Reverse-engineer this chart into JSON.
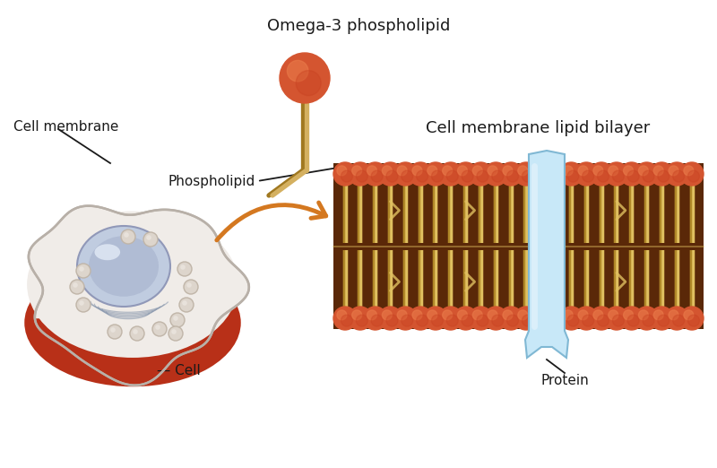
{
  "bg_color": "#ffffff",
  "title_omega": "Omega-3 phospholipid",
  "title_bilayer": "Cell membrane lipid bilayer",
  "label_phospholipid": "Phospholipid",
  "label_cell_membrane": "Cell membrane",
  "label_cell": "Cell",
  "label_protein": "Protein",
  "head_color_dark": "#c84020",
  "head_color_mid": "#d45530",
  "head_color_light": "#e87848",
  "tail_color_dark": "#a07820",
  "tail_color_light": "#d4b060",
  "bilayer_bg": "#5a2808",
  "bilayer_line_dark": "#b08828",
  "bilayer_line_light": "#e0c060",
  "cell_outer_color": "#b83018",
  "cell_inner_color": "#f0ece8",
  "cell_membrane_color": "#d8d0c8",
  "nucleus_color_dark": "#8898b8",
  "nucleus_color_light": "#c0cce0",
  "nucleus_highlight": "#e0e8f4",
  "er_color": "#8090a8",
  "organelle_color": "#d0c8c0",
  "organelle_edge": "#b0a898",
  "protein_color_top": "#c8e8f8",
  "protein_color_bot": "#a0c8e0",
  "arrow_color": "#d47820",
  "text_color": "#1a1a1a",
  "annot_line_color": "#1a1a1a",
  "font_size_title": 13,
  "font_size_label": 11
}
